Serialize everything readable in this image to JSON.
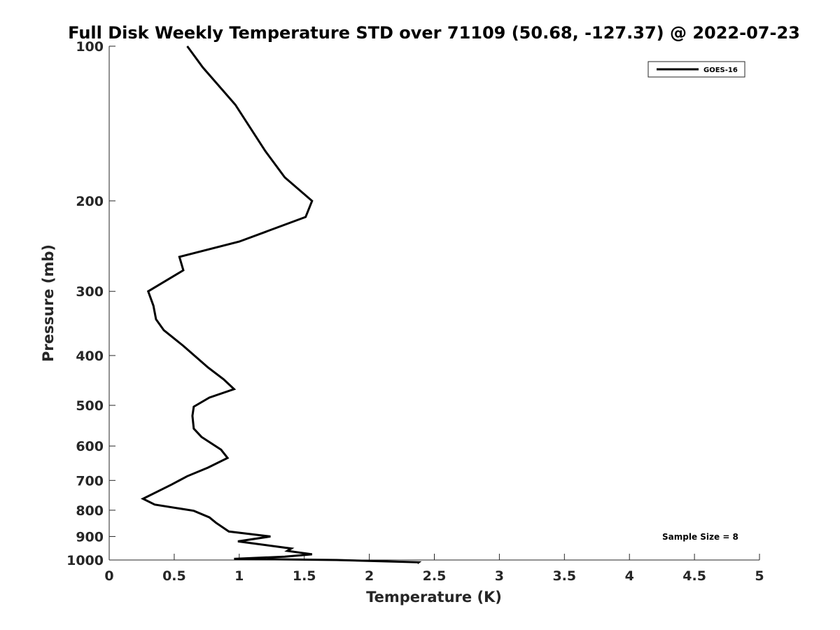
{
  "chart_data": {
    "type": "line",
    "title": "Full Disk Weekly Temperature STD over 71109 (50.68, -127.37) @ 2022-07-23",
    "xlabel": "Temperature (K)",
    "ylabel": "Pressure (mb)",
    "xlim": [
      0,
      5
    ],
    "ylim": [
      100,
      1000
    ],
    "y_scale": "log",
    "y_reversed": true,
    "x_ticks": [
      "0",
      "0.5",
      "1",
      "1.5",
      "2",
      "2.5",
      "3",
      "3.5",
      "4",
      "4.5",
      "5"
    ],
    "y_ticks": [
      "100",
      "200",
      "300",
      "400",
      "500",
      "600",
      "700",
      "800",
      "900",
      "1000"
    ],
    "grid": false,
    "legend_position": "top-right",
    "annotation": "Sample Size = 8",
    "series": [
      {
        "name": "GOES-16",
        "color": "#000000",
        "x": [
          0.6,
          0.72,
          0.97,
          1.2,
          1.35,
          1.56,
          1.51,
          1.0,
          0.54,
          0.57,
          0.3,
          0.34,
          0.36,
          0.42,
          0.57,
          0.76,
          0.88,
          0.96,
          0.77,
          0.65,
          0.64,
          0.65,
          0.71,
          0.86,
          0.91,
          0.76,
          0.6,
          0.48,
          0.26,
          0.35,
          0.65,
          0.77,
          0.82,
          0.92,
          1.24,
          0.99,
          1.4,
          1.37,
          1.56,
          1.35,
          0.96,
          1.75,
          2.38,
          2.37
        ],
        "y": [
          100,
          110,
          130,
          160,
          180,
          200,
          215,
          240,
          257,
          273,
          300,
          320,
          340,
          357,
          383,
          422,
          445,
          465,
          483,
          503,
          524,
          555,
          576,
          610,
          633,
          661,
          687,
          713,
          760,
          780,
          802,
          826,
          846,
          880,
          900,
          920,
          950,
          960,
          975,
          985,
          995,
          1000,
          1010,
          1015
        ]
      }
    ]
  }
}
